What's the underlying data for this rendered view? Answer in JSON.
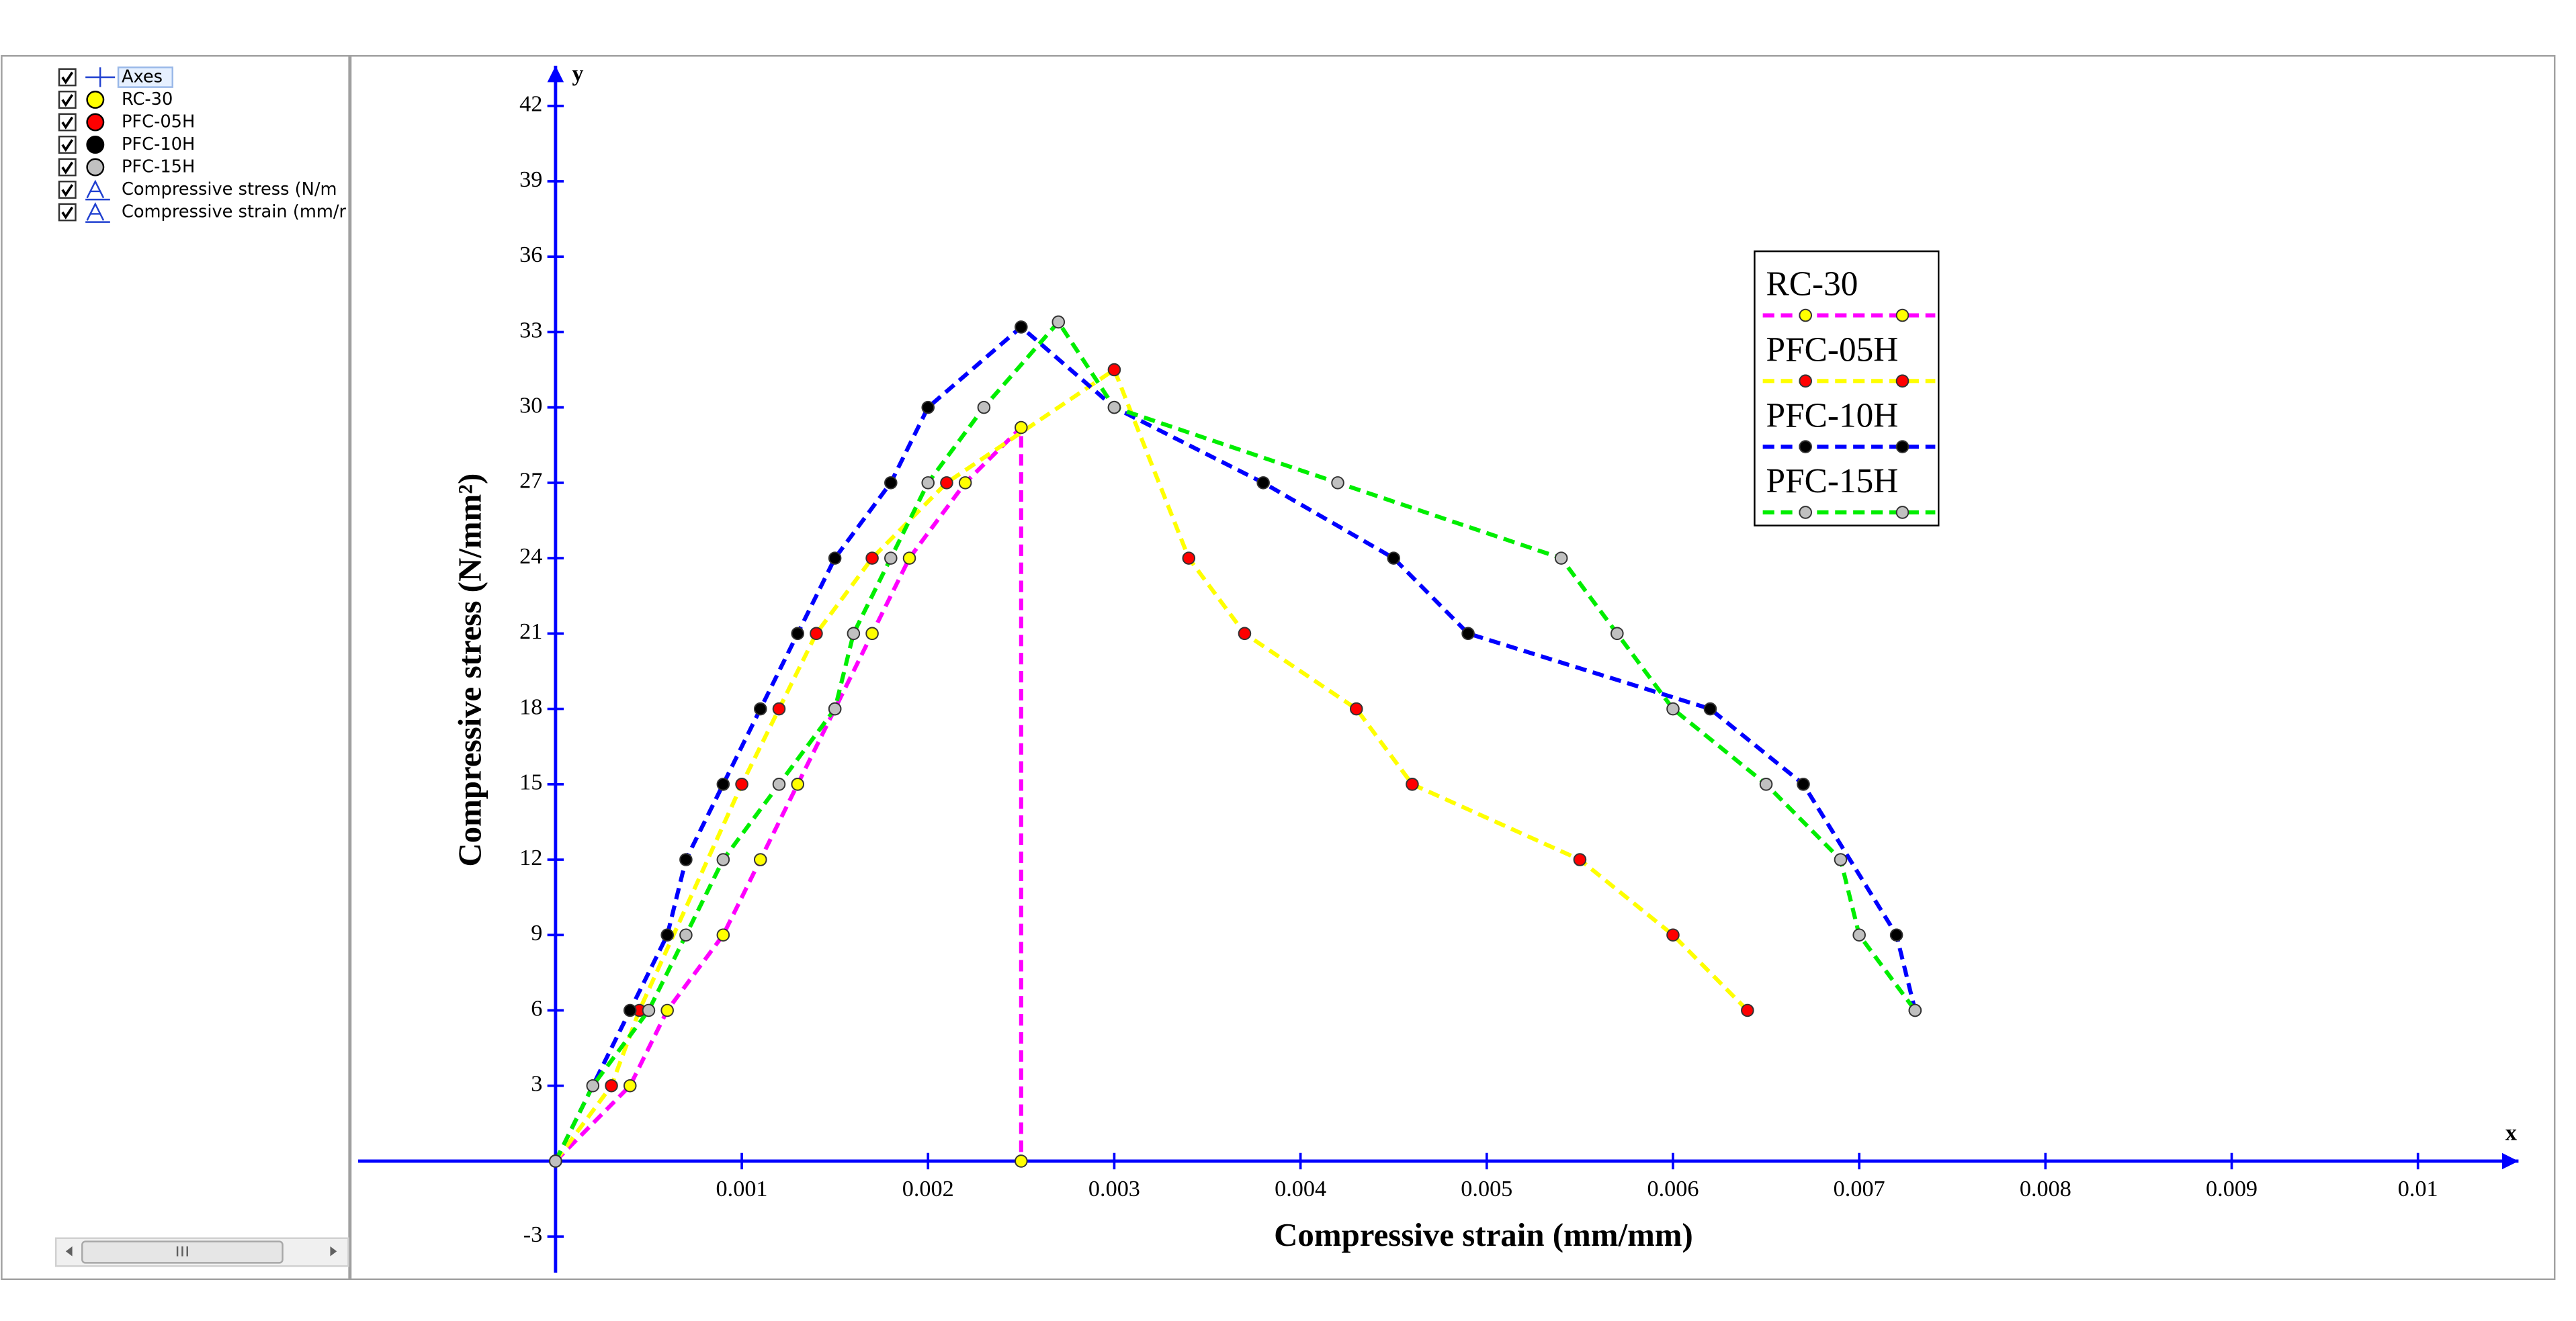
{
  "sidebar": {
    "items": [
      "Axes",
      "RC-30",
      "PFC-05H",
      "PFC-10H",
      "PFC-15H",
      "Compressive stress (N/m",
      "Compressive strain (mm/r"
    ]
  },
  "chart_data": {
    "type": "line",
    "x_label": "Compressive strain (mm/mm)",
    "y_label": "Compressive stress (N/mm²)",
    "x_axis_symbol": "x",
    "y_axis_symbol": "y",
    "xlim": [
      -0.00106,
      0.01054
    ],
    "ylim": [
      -4.44,
      43.6
    ],
    "xticks": [
      0.001,
      0.002,
      0.003,
      0.004,
      0.005,
      0.006,
      0.007,
      0.008,
      0.009,
      0.01
    ],
    "yticks": [
      -3,
      3,
      6,
      9,
      12,
      15,
      18,
      21,
      24,
      27,
      30,
      33,
      36,
      39,
      42
    ],
    "axis_color": "#0000ff",
    "series": [
      {
        "name": "RC-30",
        "color": "#ff00ff",
        "marker_color": "#ffff00",
        "x": [
          0,
          0.0004,
          0.0006,
          0.0009,
          0.0011,
          0.0013,
          0.0015,
          0.0017,
          0.0019,
          0.0022,
          0.0025,
          0.0025
        ],
        "values": [
          0,
          3,
          6,
          9,
          12,
          15,
          18,
          21,
          24,
          27,
          29.2,
          0
        ]
      },
      {
        "name": "PFC-05H",
        "color": "#ffff00",
        "marker_color": "#ff0000",
        "x": [
          0,
          0.0003,
          0.00045,
          0.001,
          0.0012,
          0.0014,
          0.0017,
          0.0021,
          0.003,
          0.0034,
          0.0037,
          0.0043,
          0.0046,
          0.0055,
          0.006,
          0.0064
        ],
        "values": [
          0,
          3,
          6,
          15,
          18,
          21,
          24,
          27,
          31.5,
          24,
          21,
          18,
          15,
          12,
          9,
          6
        ]
      },
      {
        "name": "PFC-10H",
        "color": "#0000ff",
        "marker_color": "#000000",
        "x": [
          0,
          0.0004,
          0.0006,
          0.0007,
          0.0009,
          0.0011,
          0.0013,
          0.0015,
          0.0018,
          0.002,
          0.0025,
          0.003,
          0.0038,
          0.0045,
          0.0049,
          0.0062,
          0.0067,
          0.0072,
          0.0073
        ],
        "values": [
          0,
          6,
          9,
          12,
          15,
          18,
          21,
          24,
          27,
          30,
          33.2,
          30,
          27,
          24,
          21,
          18,
          15,
          9,
          6
        ]
      },
      {
        "name": "PFC-15H",
        "color": "#00ee00",
        "marker_color": "#c0c0c0",
        "x": [
          0,
          0.0002,
          0.0005,
          0.0007,
          0.0009,
          0.0012,
          0.0015,
          0.0016,
          0.0018,
          0.002,
          0.0023,
          0.0027,
          0.003,
          0.0042,
          0.0054,
          0.0057,
          0.006,
          0.0065,
          0.0069,
          0.007,
          0.0073
        ],
        "values": [
          0,
          3,
          6,
          9,
          12,
          15,
          18,
          21,
          24,
          27,
          30,
          33.4,
          30,
          27,
          24,
          21,
          18,
          15,
          12,
          9,
          6
        ]
      }
    ]
  }
}
